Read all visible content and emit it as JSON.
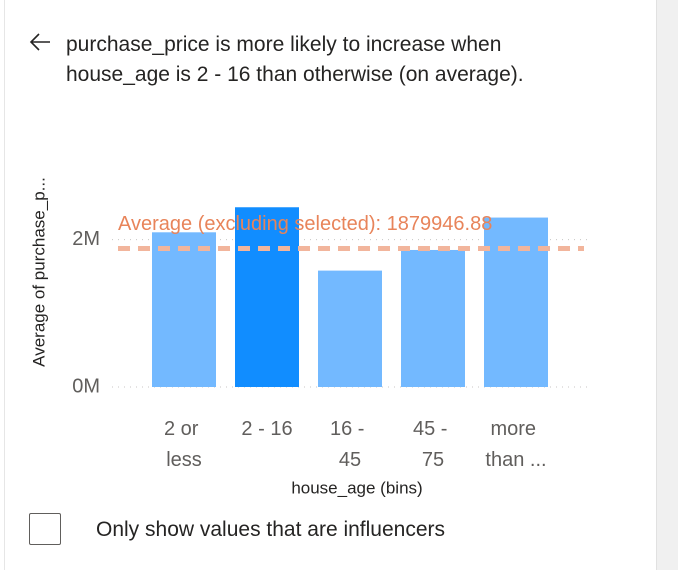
{
  "title": "purchase_price is more likely to increase when house_age is 2 - 16 than otherwise (on average).",
  "chart_data": {
    "type": "bar",
    "ylabel": "Average of purchase_p...",
    "xlabel": "house_age (bins)",
    "categories": [
      "2 or less",
      "2 - 16",
      "16 - 45",
      "45 - 75",
      "more than ..."
    ],
    "values": [
      2100000,
      2440000,
      1580000,
      1860000,
      2300000
    ],
    "colors": [
      "#73b9ff",
      "#118dff",
      "#73b9ff",
      "#73b9ff",
      "#73b9ff"
    ],
    "ylim": [
      0,
      3000000
    ],
    "yticks": [
      {
        "value": 0,
        "label": "0M"
      },
      {
        "value": 2000000,
        "label": "2M"
      }
    ],
    "grid": true,
    "average_line": {
      "label": "Average (excluding selected): 1879946.88",
      "value": 1879946.88,
      "color": "#f2b59c"
    }
  },
  "checkbox_label": "Only show values that are influencers"
}
